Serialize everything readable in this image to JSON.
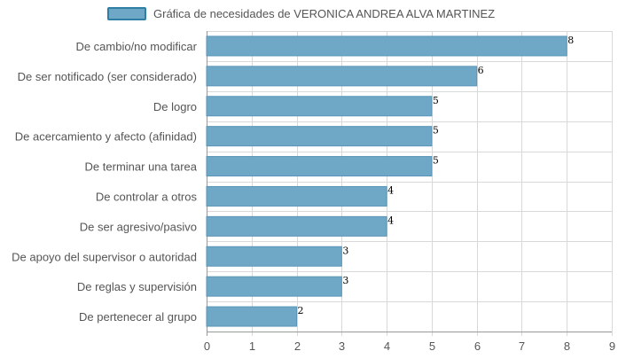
{
  "chart_data": {
    "type": "bar",
    "orientation": "horizontal",
    "legend": {
      "label": "Gráfica de necesidades de VERONICA ANDREA ALVA MARTINEZ",
      "position": "top-center"
    },
    "categories": [
      "De cambio/no modificar",
      "De ser notificado (ser considerado)",
      "De logro",
      "De acercamiento y afecto (afinidad)",
      "De terminar una tarea",
      "De controlar a otros",
      "De ser agresivo/pasivo",
      "De apoyo del supervisor o autoridad",
      "De reglas y supervisión",
      "De pertenecer al grupo"
    ],
    "series": [
      {
        "name": "Gráfica de necesidades de VERONICA ANDREA ALVA MARTINEZ",
        "values": [
          8,
          6,
          5,
          5,
          5,
          4,
          4,
          3,
          3,
          2
        ]
      }
    ],
    "xlim": [
      0,
      9
    ],
    "xticks": [
      "0",
      "1",
      "2",
      "3",
      "4",
      "5",
      "6",
      "7",
      "8",
      "9"
    ],
    "grid": true,
    "colors": {
      "bar_fill": "#6fa8c7",
      "bar_stroke": "#5a95b8",
      "legend_fill": "#6fa8c7",
      "legend_stroke": "#2f7ea6",
      "grid": "#d9d9d9"
    }
  }
}
